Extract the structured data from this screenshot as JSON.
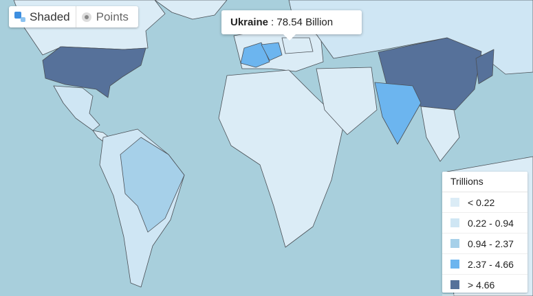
{
  "toggle": {
    "options": [
      "Shaded",
      "Points"
    ]
  },
  "tooltip": {
    "name": "Ukraine",
    "text": ": 78.54 Billion"
  },
  "legend": {
    "title": "Trillions",
    "items": [
      {
        "label": "< 0.22",
        "color": "#dbecf6"
      },
      {
        "label": "0.22 - 0.94",
        "color": "#cfe6f4"
      },
      {
        "label": "0.94 - 2.37",
        "color": "#a6d0e9"
      },
      {
        "label": "2.37 - 4.66",
        "color": "#6cb5ef"
      },
      {
        "label": "> 4.66",
        "color": "#56719a"
      }
    ]
  }
}
